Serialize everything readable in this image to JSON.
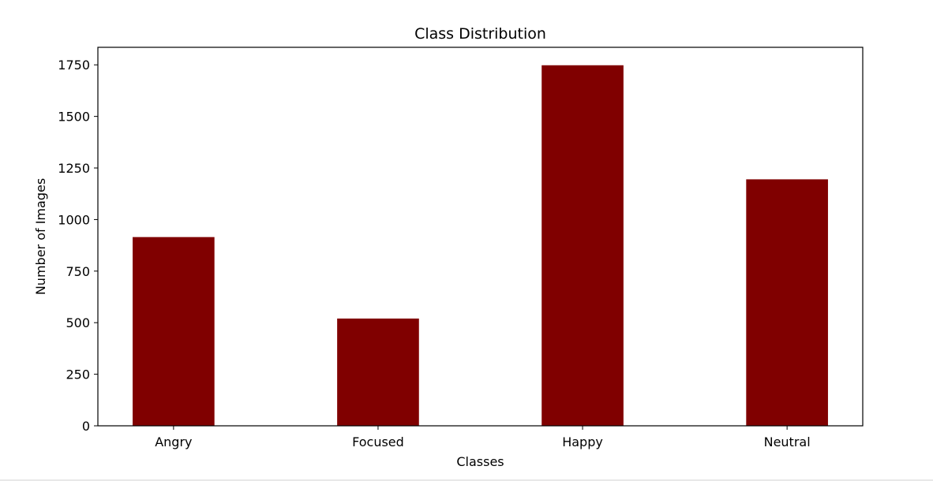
{
  "chart_data": {
    "type": "bar",
    "title": "Class Distribution",
    "xlabel": "Classes",
    "ylabel": "Number of Images",
    "categories": [
      "Angry",
      "Focused",
      "Happy",
      "Neutral"
    ],
    "values": [
      915,
      520,
      1748,
      1195
    ],
    "ylim": [
      0,
      1835
    ],
    "yticks": [
      0,
      250,
      500,
      750,
      1000,
      1250,
      1500,
      1750
    ],
    "bar_color": "#800000",
    "grid": false,
    "legend": "none"
  }
}
